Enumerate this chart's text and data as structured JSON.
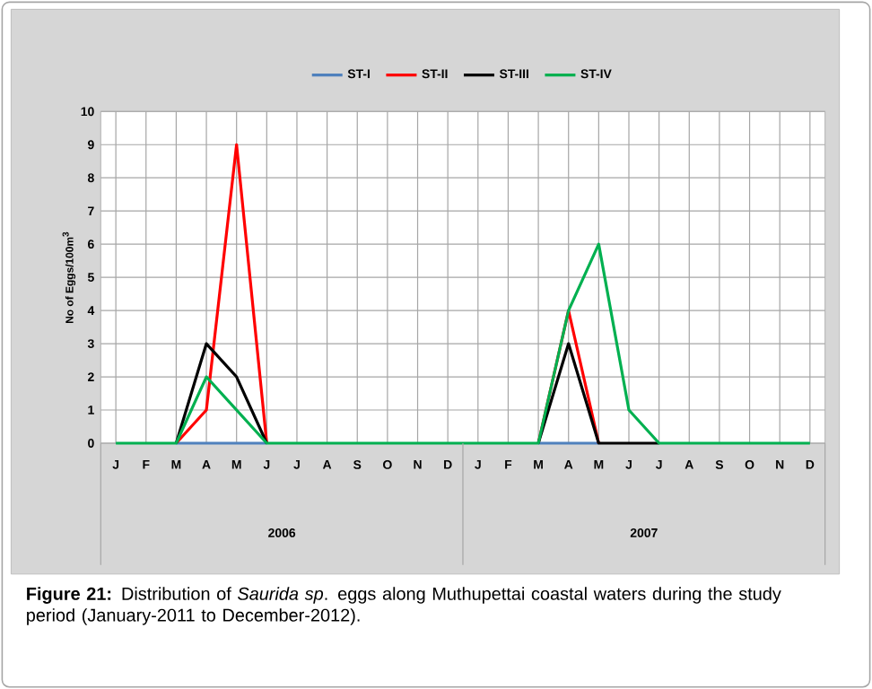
{
  "chart_data": {
    "type": "line",
    "categories": [
      "J",
      "F",
      "M",
      "A",
      "M",
      "J",
      "J",
      "A",
      "S",
      "O",
      "N",
      "D",
      "J",
      "F",
      "M",
      "A",
      "M",
      "J",
      "J",
      "A",
      "S",
      "O",
      "N",
      "D"
    ],
    "ylabel": "No of Eggs/100m$^{3}$",
    "ylim": [
      0,
      10
    ],
    "yticks": [
      0,
      1,
      2,
      3,
      4,
      5,
      6,
      7,
      8,
      9,
      10
    ],
    "grid": true,
    "legend": "top",
    "marker": "none",
    "line_style": "solid",
    "series": [
      {
        "name": "ST-I",
        "color": "#4f81bd",
        "values": [
          null,
          null,
          0,
          0,
          0,
          0,
          null,
          null,
          null,
          null,
          null,
          null,
          null,
          null,
          0,
          0,
          0,
          null,
          null,
          null,
          null,
          null,
          null,
          null
        ]
      },
      {
        "name": "ST-II",
        "color": "#ff0000",
        "values": [
          null,
          null,
          0,
          1,
          9,
          0,
          null,
          null,
          null,
          null,
          null,
          null,
          null,
          null,
          0,
          4,
          0,
          null,
          null,
          null,
          null,
          null,
          null,
          null
        ]
      },
      {
        "name": "ST-III",
        "color": "#000000",
        "values": [
          null,
          null,
          0,
          3,
          2,
          0,
          null,
          null,
          null,
          null,
          null,
          null,
          null,
          null,
          0,
          3,
          0,
          0,
          0,
          null,
          null,
          null,
          null,
          null
        ]
      },
      {
        "name": "ST-IV",
        "color": "#00b050",
        "values": [
          0,
          0,
          0,
          2,
          1,
          0,
          0,
          0,
          0,
          0,
          0,
          0,
          0,
          0,
          0,
          4,
          6,
          1,
          0,
          0,
          0,
          0,
          0,
          0
        ]
      }
    ],
    "annotations": [
      "2006",
      "2007",
      "**Figure 21:** Distribution of *Saurida sp*. eggs along Muthupettai coastal waters during the study period (January-2011 to December-2012)."
    ]
  }
}
